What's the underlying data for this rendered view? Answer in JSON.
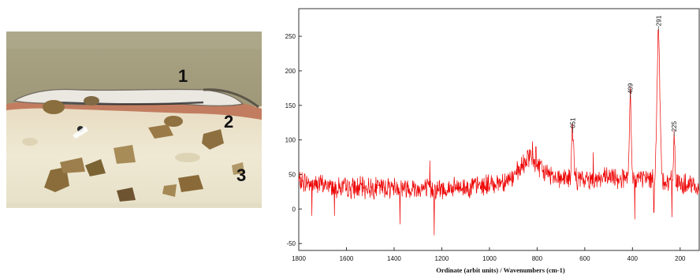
{
  "figure": {
    "photo": {
      "labels": [
        "1",
        "2",
        "3"
      ],
      "colors": {
        "background": "#a8a07c",
        "layer1_coating": "#ece8e2",
        "layer2_red": "#c07a5e",
        "layer3_substrate": "#ece6cc",
        "aggregate": "#8a6a3c"
      }
    },
    "spectrum": {
      "line_color": "#ee0000"
    }
  },
  "chart_data": {
    "type": "line",
    "xlabel": "Ordinate (arbit units) / Wavenumbers (cm-1)",
    "ylabel": "",
    "title": "",
    "xlim": [
      1800,
      120
    ],
    "ylim": [
      -60,
      290
    ],
    "x_reversed": true,
    "x_ticks": [
      1800,
      1600,
      1400,
      1200,
      1000,
      800,
      600,
      400,
      200
    ],
    "y_ticks": [
      -50,
      0,
      50,
      100,
      150,
      200,
      250
    ],
    "peaks": [
      {
        "x": 651,
        "y": 110,
        "label": "651"
      },
      {
        "x": 409,
        "y": 160,
        "label": "409"
      },
      {
        "x": 291,
        "y": 258,
        "label": "291"
      },
      {
        "x": 225,
        "y": 105,
        "label": "225"
      }
    ],
    "baseline_knots": [
      [
        1800,
        40
      ],
      [
        1600,
        30
      ],
      [
        1400,
        32
      ],
      [
        1200,
        28
      ],
      [
        1000,
        35
      ],
      [
        900,
        45
      ],
      [
        830,
        75
      ],
      [
        780,
        55
      ],
      [
        700,
        45
      ],
      [
        600,
        42
      ],
      [
        500,
        45
      ],
      [
        350,
        45
      ],
      [
        250,
        40
      ],
      [
        120,
        30
      ]
    ],
    "spikes": [
      {
        "x": 1232,
        "y": -38
      },
      {
        "x": 1250,
        "y": 70
      },
      {
        "x": 1375,
        "y": -22
      },
      {
        "x": 1650,
        "y": -10
      },
      {
        "x": 1745,
        "y": -10
      },
      {
        "x": 390,
        "y": -15
      },
      {
        "x": 310,
        "y": -5
      },
      {
        "x": 235,
        "y": -12
      },
      {
        "x": 820,
        "y": 98
      },
      {
        "x": 805,
        "y": 90
      },
      {
        "x": 840,
        "y": 85
      },
      {
        "x": 565,
        "y": 82
      }
    ],
    "bands": [
      {
        "center": 651,
        "height": 75,
        "width": 4
      },
      {
        "center": 409,
        "height": 118,
        "width": 3.5
      },
      {
        "center": 291,
        "height": 215,
        "width": 6
      },
      {
        "center": 225,
        "height": 72,
        "width": 3
      }
    ],
    "noise_amplitude": 12,
    "n_points": 1100
  }
}
